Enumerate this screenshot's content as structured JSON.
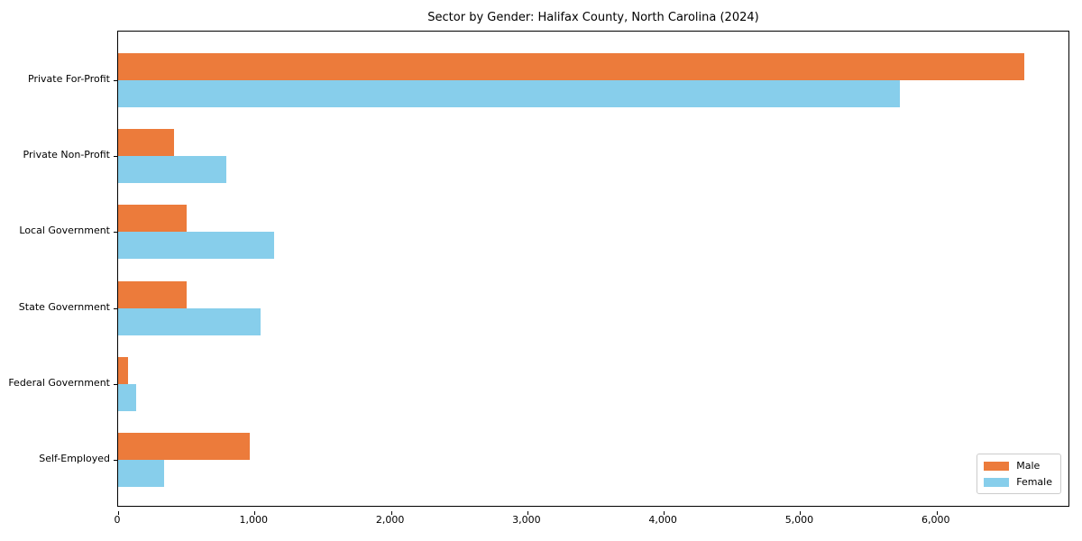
{
  "chart_data": {
    "type": "bar",
    "orientation": "horizontal",
    "title": "Sector by Gender: Halifax County, North Carolina (2024)",
    "categories": [
      "Private For-Profit",
      "Private Non-Profit",
      "Local Government",
      "State Government",
      "Federal Government",
      "Self-Employed"
    ],
    "series": [
      {
        "name": "Male",
        "color": "#EC7B3B",
        "values": [
          6645,
          410,
          500,
          505,
          70,
          965
        ]
      },
      {
        "name": "Female",
        "color": "#87CEEB",
        "values": [
          5730,
          790,
          1145,
          1045,
          130,
          335
        ]
      }
    ],
    "xlabel": "",
    "ylabel": "",
    "xlim": [
      0,
      6980
    ],
    "xticks": {
      "values": [
        0,
        1000,
        2000,
        3000,
        4000,
        5000,
        6000
      ],
      "labels": [
        "0",
        "1,000",
        "2,000",
        "3,000",
        "4,000",
        "5,000",
        "6,000"
      ]
    },
    "grid": false,
    "legend": {
      "position": "lower right",
      "entries": [
        "Male",
        "Female"
      ]
    }
  }
}
